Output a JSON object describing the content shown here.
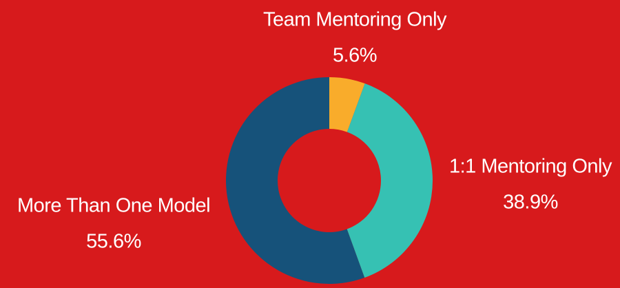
{
  "chart_data": {
    "type": "pie",
    "categories": [
      "Team Mentoring Only",
      "1:1 Mentoring Only",
      "More Than One Model"
    ],
    "values": [
      5.6,
      38.9,
      55.6
    ],
    "value_labels": [
      "5.6%",
      "38.9%",
      "55.6%"
    ],
    "colors": [
      "#f9ac2b",
      "#36c1b3",
      "#16527a"
    ],
    "donut": true
  }
}
